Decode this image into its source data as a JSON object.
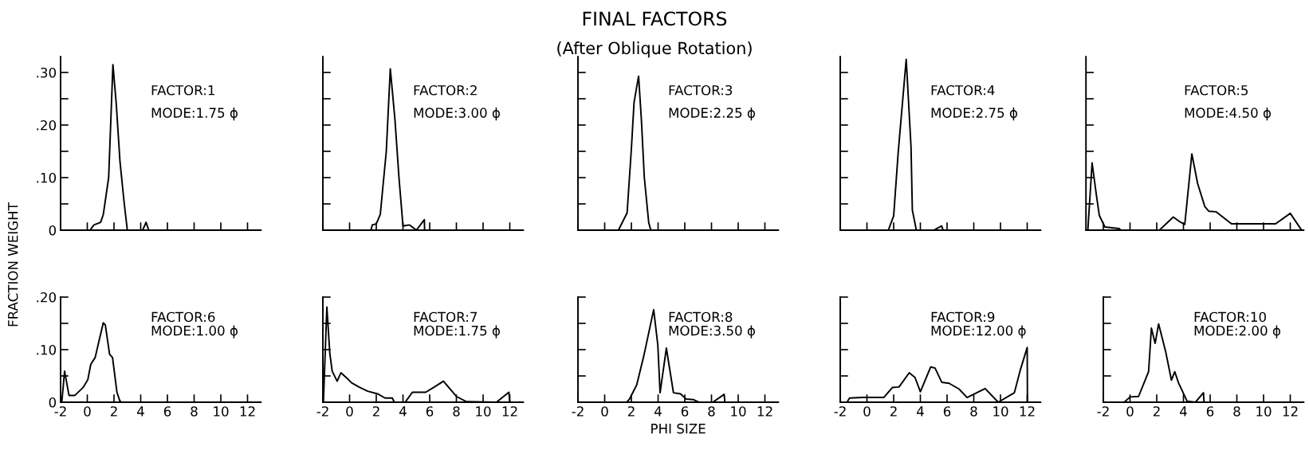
{
  "chart_data": [
    {
      "type": "line",
      "ylabel": "FRACTION WEIGHT",
      "annotations": [
        "FACTOR:1",
        "MODE:1.75 ϕ"
      ],
      "color": "#000000",
      "tick_labels": "y",
      "xlim": [
        -2,
        13
      ],
      "xticks": [
        -2,
        0,
        2,
        4,
        6,
        8,
        10,
        12
      ],
      "ylim": [
        0,
        0.33
      ],
      "yticks": [
        {
          "value": 0,
          "label": "0"
        },
        {
          "value": 0.05,
          "label": null
        },
        {
          "value": 0.1,
          "label": ".10"
        },
        {
          "value": 0.15,
          "label": null
        },
        {
          "value": 0.2,
          "label": ".20"
        },
        {
          "value": 0.25,
          "label": null
        },
        {
          "value": 0.3,
          "label": ".30"
        }
      ],
      "x": [
        -2,
        0.2,
        0.5,
        1.0,
        1.2,
        1.6,
        1.92,
        2.17,
        2.45,
        2.77,
        3.0,
        4.15,
        4.4,
        4.6,
        5.0
      ],
      "values": [
        0,
        0,
        0.01,
        0.015,
        0.03,
        0.1,
        0.315,
        0.24,
        0.13,
        0.05,
        0,
        0,
        0.015,
        0,
        0
      ]
    },
    {
      "type": "line",
      "annotations": [
        "FACTOR:2",
        "MODE:3.00 ϕ"
      ],
      "color": "#000000",
      "tick_labels": false,
      "xlim": [
        -2,
        13
      ],
      "xticks": [
        -2,
        0,
        2,
        4,
        6,
        8,
        10,
        12
      ],
      "ylim": [
        0,
        0.33
      ],
      "yticks": [
        0,
        0.05,
        0.1,
        0.15,
        0.2,
        0.25,
        0.3
      ],
      "x": [
        -2,
        1.6,
        1.7,
        2.0,
        2.3,
        2.75,
        3.05,
        3.4,
        3.7,
        4.0,
        4.5,
        5.0,
        5.6,
        5.62
      ],
      "values": [
        0,
        0,
        0.01,
        0.012,
        0.03,
        0.15,
        0.307,
        0.21,
        0.1,
        0.008,
        0.01,
        0,
        0.02,
        0
      ]
    },
    {
      "type": "line",
      "title": "FINAL FACTORS",
      "subtitle": "(After Oblique Rotation)",
      "annotations": [
        "FACTOR:3",
        "MODE:2.25 ϕ"
      ],
      "color": "#000000",
      "tick_labels": false,
      "xlim": [
        -2,
        13
      ],
      "xticks": [
        -2,
        0,
        2,
        4,
        6,
        8,
        10,
        12
      ],
      "ylim": [
        0,
        0.33
      ],
      "yticks": [
        0,
        0.05,
        0.1,
        0.15,
        0.2,
        0.25,
        0.3
      ],
      "x": [
        1.03,
        1.68,
        2.0,
        2.2,
        2.54,
        2.75,
        2.97,
        3.3,
        3.46
      ],
      "values": [
        0,
        0.033,
        0.155,
        0.243,
        0.293,
        0.21,
        0.1,
        0.014,
        0
      ]
    },
    {
      "type": "line",
      "annotations": [
        "FACTOR:4",
        "MODE:2.75 ϕ"
      ],
      "color": "#000000",
      "tick_labels": false,
      "xlim": [
        -2,
        13
      ],
      "xticks": [
        -2,
        0,
        2,
        4,
        6,
        8,
        10,
        12
      ],
      "ylim": [
        0,
        0.33
      ],
      "yticks": [
        0,
        0.05,
        0.1,
        0.15,
        0.2,
        0.25,
        0.3
      ],
      "x": [
        1.6,
        2.0,
        2.34,
        2.94,
        3.3,
        3.4,
        3.7,
        5.0,
        5.6,
        5.7
      ],
      "values": [
        0,
        0.027,
        0.148,
        0.325,
        0.159,
        0.038,
        0,
        0,
        0.008,
        0
      ]
    },
    {
      "type": "line",
      "annotations": [
        "FACTOR:5",
        "MODE:4.50 ϕ"
      ],
      "color": "#000000",
      "tick_labels": false,
      "xlim": [
        -3.3,
        13
      ],
      "xticks": [
        -2,
        0,
        2,
        4,
        6,
        8,
        10,
        12
      ],
      "ylim": [
        0,
        0.33
      ],
      "yticks": [
        0,
        0.05,
        0.1,
        0.15,
        0.2,
        0.25,
        0.3
      ],
      "x": [
        -3.16,
        -2.84,
        -2.52,
        -2.3,
        -1.88,
        -0.8,
        -0.7,
        2.2,
        3.24,
        3.67,
        4.1,
        4.63,
        5.06,
        5.6,
        5.9,
        6.45,
        7.6,
        10.9,
        12.0,
        12.85
      ],
      "values": [
        0,
        0.128,
        0.067,
        0.028,
        0.006,
        0.003,
        0,
        0,
        0.025,
        0.017,
        0.011,
        0.145,
        0.089,
        0.045,
        0.036,
        0.035,
        0.012,
        0.012,
        0.032,
        0
      ]
    },
    {
      "type": "line",
      "annotations": [
        "FACTOR:6",
        "MODE:1.00 ϕ"
      ],
      "color": "#000000",
      "xlim": [
        -2,
        13
      ],
      "xticks": [
        -2,
        0,
        2,
        4,
        6,
        8,
        10,
        12
      ],
      "ylim": [
        0,
        0.2
      ],
      "yticks": [
        {
          "value": 0,
          "label": "0"
        },
        {
          "value": 0.05,
          "label": null
        },
        {
          "value": 0.1,
          "label": ".10"
        },
        {
          "value": 0.15,
          "label": null
        },
        {
          "value": 0.2,
          "label": ".20"
        }
      ],
      "x": [
        -1.91,
        -1.7,
        -1.37,
        -0.93,
        -0.6,
        -0.28,
        0.04,
        0.26,
        0.59,
        0.91,
        1.2,
        1.35,
        1.67,
        1.89,
        2.22,
        2.43,
        2.54
      ],
      "values": [
        0,
        0.059,
        0.013,
        0.013,
        0.021,
        0.029,
        0.043,
        0.072,
        0.085,
        0.12,
        0.151,
        0.147,
        0.091,
        0.085,
        0.019,
        0.003,
        0
      ]
    },
    {
      "type": "line",
      "annotations": [
        "FACTOR:7",
        "MODE:1.75 ϕ"
      ],
      "color": "#000000",
      "tick_labels": "x",
      "xlim": [
        -2,
        13
      ],
      "xticks": [
        -2,
        0,
        2,
        4,
        6,
        8,
        10,
        12
      ],
      "ylim": [
        0,
        0.2
      ],
      "yticks": [
        0,
        0.05,
        0.1,
        0.15,
        0.2
      ],
      "x": [
        -1.96,
        -1.7,
        -1.48,
        -1.3,
        -0.93,
        -0.65,
        -0.17,
        0.15,
        0.7,
        1.35,
        2.1,
        2.65,
        3.2,
        3.35,
        4.17,
        4.7,
        5.7,
        6.35,
        7.03,
        8.0,
        8.75,
        11.0,
        11.93,
        12.0
      ],
      "values": [
        0,
        0.181,
        0.093,
        0.059,
        0.04,
        0.056,
        0.045,
        0.037,
        0.029,
        0.021,
        0.016,
        0.008,
        0.008,
        0,
        0,
        0.019,
        0.019,
        0.029,
        0.04,
        0.011,
        0.001,
        0,
        0.019,
        0
      ]
    },
    {
      "type": "line",
      "xlabel": "PHI SIZE",
      "annotations": [
        "FACTOR:8",
        "MODE:3.50 ϕ"
      ],
      "color": "#000000",
      "tick_labels": "x",
      "xlim": [
        -2,
        13
      ],
      "xticks": [
        -2,
        0,
        2,
        4,
        6,
        8,
        10,
        12
      ],
      "ylim": [
        0,
        0.2
      ],
      "yticks": [
        0,
        0.05,
        0.1,
        0.15,
        0.2
      ],
      "x": [
        -1.84,
        1.65,
        1.86,
        2.4,
        2.92,
        3.67,
        3.98,
        4.15,
        4.62,
        5.15,
        5.68,
        6.1,
        6.63,
        7.05,
        8.1,
        8.95,
        9.0
      ],
      "values": [
        0,
        0,
        0.006,
        0.033,
        0.087,
        0.176,
        0.109,
        0.018,
        0.103,
        0.018,
        0.016,
        0.006,
        0.005,
        0,
        0,
        0.015,
        0
      ]
    },
    {
      "type": "line",
      "annotations": [
        "FACTOR:9",
        "MODE:12.00 ϕ"
      ],
      "color": "#000000",
      "tick_labels": "x",
      "xlim": [
        -2,
        13
      ],
      "xticks": [
        -2,
        0,
        2,
        4,
        6,
        8,
        10,
        12
      ],
      "ylim": [
        0,
        0.2
      ],
      "yticks": [
        0,
        0.05,
        0.1,
        0.15,
        0.2
      ],
      "x": [
        -1.5,
        -1.3,
        -0.34,
        1.26,
        1.9,
        2.4,
        3.17,
        3.6,
        4.0,
        4.77,
        5.1,
        5.6,
        6.15,
        6.9,
        7.5,
        8.85,
        9.83,
        11.04,
        11.47,
        12.0,
        12.02
      ],
      "values": [
        0,
        0.008,
        0.009,
        0.009,
        0.028,
        0.029,
        0.056,
        0.047,
        0.02,
        0.067,
        0.065,
        0.038,
        0.036,
        0.025,
        0.009,
        0.026,
        0,
        0.018,
        0.06,
        0.104,
        0
      ]
    },
    {
      "type": "line",
      "annotations": [
        "FACTOR:10",
        "MODE:2.00 ϕ"
      ],
      "color": "#000000",
      "tick_labels": "x",
      "xlim": [
        -2,
        13
      ],
      "xticks": [
        -2,
        0,
        2,
        4,
        6,
        8,
        10,
        12
      ],
      "ylim": [
        0,
        0.2
      ],
      "yticks": [
        0,
        0.05,
        0.1,
        0.15,
        0.2
      ],
      "x": [
        -0.43,
        0,
        0.64,
        1.39,
        1.6,
        1.88,
        2.14,
        2.46,
        2.67,
        3.1,
        3.35,
        3.63,
        4.27,
        4.9,
        5.5,
        5.54
      ],
      "values": [
        0,
        0.01,
        0.011,
        0.058,
        0.141,
        0.112,
        0.149,
        0.117,
        0.096,
        0.042,
        0.058,
        0.037,
        0.002,
        0,
        0.018,
        0
      ]
    }
  ]
}
